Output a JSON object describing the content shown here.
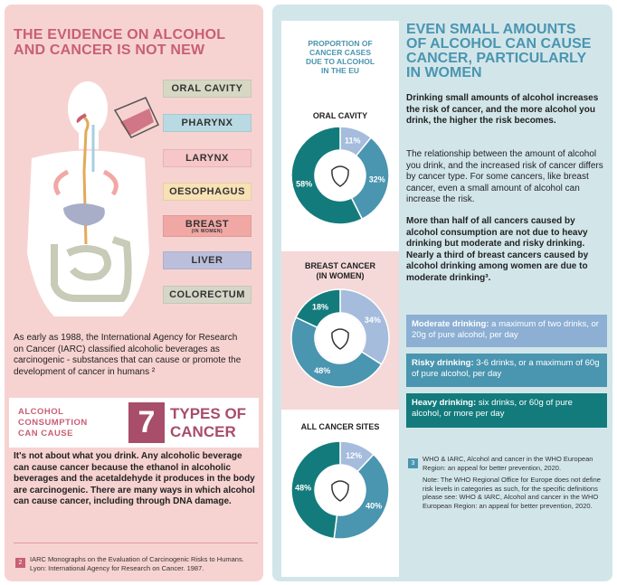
{
  "left": {
    "title_line1": "THE EVIDENCE ON ALCOHOL",
    "title_line2": "AND CANCER IS NOT NEW",
    "organs": [
      {
        "label": "ORAL CAVITY",
        "color": "#d6d8c4"
      },
      {
        "label": "PHARYNX",
        "color": "#b9dae2"
      },
      {
        "label": "LARYNX",
        "color": "#f6c6c8"
      },
      {
        "label": "OESOPHAGUS",
        "color": "#f7e1b5"
      },
      {
        "label": "BREAST",
        "sub": "(IN WOMEN)",
        "color": "#f1a8a5"
      },
      {
        "label": "LIVER",
        "color": "#bbbfdc"
      },
      {
        "label": "COLORECTUM",
        "color": "#d6d6c8"
      }
    ],
    "intro": "As early as 1988, the International Agency for Research on Cancer (IARC) classified alcoholic beverages as carcinogenic - substances that can cause or promote the development of cancer in humans ²",
    "consumption_label_1": "ALCOHOL",
    "consumption_label_2": "CONSUMPTION",
    "consumption_label_3": "CAN CAUSE",
    "number": "7",
    "types_line1": "TYPES OF",
    "types_line2": "CANCER",
    "body": "It's not about what you drink. Any alcoholic beverage can cause cancer because the ethanol in alcoholic beverages and the acetaldehyde it produces in the body are carcinogenic. There are many ways in which alcohol can cause cancer, including through DNA damage.",
    "footnote_num": "2",
    "footnote": "IARC Monographs on the Evaluation of Carcinogenic Risks to Humans. Lyon: International Agency for Research on Cancer. 1987."
  },
  "right": {
    "proportion_title_1": "PROPORTION OF",
    "proportion_title_2": "CANCER CASES",
    "proportion_title_3": "DUE TO ALCOHOL",
    "proportion_title_4": "IN THE EU",
    "heading_1": "EVEN SMALL AMOUNTS",
    "heading_2": "OF ALCOHOL CAN CAUSE",
    "heading_3": "CANCER, PARTICULARLY",
    "heading_4": "IN WOMEN",
    "para1": "Drinking small amounts of alcohol increases the risk of cancer, and the more alcohol you drink, the higher the risk becomes.",
    "para2": "The relationship between the amount of alcohol you drink, and the increased risk of cancer differs by cancer type. For some cancers, like breast cancer, even a small amount of alcohol can increase the risk.",
    "para3": "More than half of all cancers caused by alcohol consumption are not due to heavy drinking but moderate and risky drinking. Nearly a third of breast cancers caused by alcohol drinking among women are due to moderate drinking³.",
    "defs": [
      {
        "term": "Moderate drinking:",
        "text": " a maximum of two drinks, or 20g of pure alcohol, per day",
        "color": "#8cafd3"
      },
      {
        "term": "Risky drinking:",
        "text": " 3-6 drinks, or a maximum of 60g of pure alcohol, per day",
        "color": "#4a95b0"
      },
      {
        "term": "Heavy drinking:",
        "text": " six drinks, or 60g of pure alcohol, or more per day",
        "color": "#137b7c"
      }
    ],
    "footnote_num": "3",
    "footnote1": "WHO & IARC, Alcohol and cancer in the WHO European Region: an appeal for better prevention, 2020.",
    "footnote2": "Note: The WHO Regional Office for Europe does not define risk levels in categories as such, for the specific definitions please see: WHO & IARC, Alcohol and cancer in the WHO European Region: an appeal for better prevention, 2020."
  },
  "chart_data": [
    {
      "type": "pie",
      "title": "ORAL CAVITY",
      "categories": [
        "Moderate drinking",
        "Risky drinking",
        "Heavy drinking"
      ],
      "values": [
        11,
        32,
        58
      ],
      "labels": [
        "11%",
        "32%",
        "58%"
      ],
      "colors": [
        "#a5bcdc",
        "#4a95b0",
        "#137b7c"
      ]
    },
    {
      "type": "pie",
      "title_line1": "BREAST CANCER",
      "title_line2": "(IN WOMEN)",
      "categories": [
        "Moderate drinking",
        "Risky drinking",
        "Heavy drinking"
      ],
      "values": [
        34,
        48,
        18
      ],
      "labels": [
        "34%",
        "48%",
        "18%"
      ],
      "colors": [
        "#a5bcdc",
        "#4a95b0",
        "#137b7c"
      ]
    },
    {
      "type": "pie",
      "title": "ALL CANCER SITES",
      "categories": [
        "Moderate drinking",
        "Risky drinking",
        "Heavy drinking"
      ],
      "values": [
        12,
        40,
        48
      ],
      "labels": [
        "12%",
        "40%",
        "48%"
      ],
      "colors": [
        "#a5bcdc",
        "#4a95b0",
        "#137b7c"
      ]
    }
  ]
}
